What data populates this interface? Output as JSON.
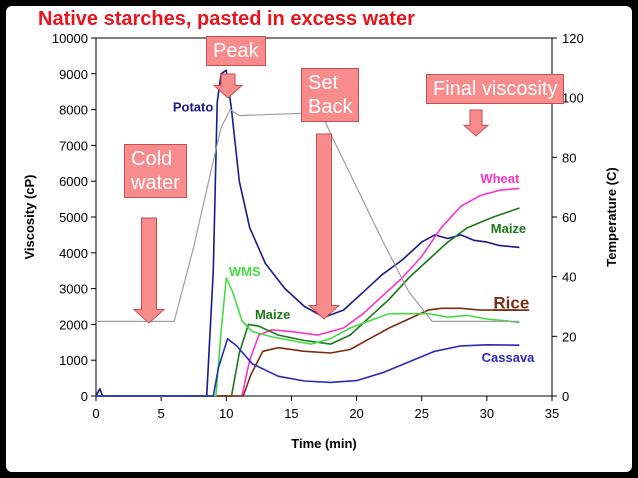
{
  "title": "Native starches, pasted in excess water",
  "callouts": {
    "peak": "Peak",
    "set_back_line1": "Set",
    "set_back_line2": "Back",
    "final_viscosity": "Final viscosity",
    "cold_water_line1": "Cold",
    "cold_water_line2": "water"
  },
  "chart_data": {
    "type": "line",
    "xlabel": "Time (min)",
    "ylabel": "Viscosity (cP)",
    "y2label": "Temperature (C)",
    "xlim": [
      0,
      35
    ],
    "ylim": [
      0,
      10000
    ],
    "y2lim": [
      0,
      120
    ],
    "xticks": [
      "0",
      "5",
      "10",
      "15",
      "20",
      "25",
      "30",
      "35"
    ],
    "yticks": [
      "0",
      "1000",
      "2000",
      "3000",
      "4000",
      "5000",
      "6000",
      "7000",
      "8000",
      "9000",
      "10000"
    ],
    "y2ticks": [
      "0",
      "20",
      "40",
      "60",
      "80",
      "100",
      "120"
    ],
    "grid": false,
    "colors": {
      "potato": "#1a1a8c",
      "wheat": "#ff33cc",
      "maize": "#1a7a1a",
      "rice": "#7a2e10",
      "wms": "#44dd44",
      "cassava": "#2a2ab8",
      "temperature": "#9e9e9e"
    },
    "series": [
      {
        "name": "Potato",
        "axis": "left",
        "color_key": "potato",
        "points": [
          [
            0,
            0
          ],
          [
            0.3,
            200
          ],
          [
            0.5,
            0
          ],
          [
            8.5,
            0
          ],
          [
            9.0,
            3500
          ],
          [
            9.3,
            8200
          ],
          [
            9.6,
            9000
          ],
          [
            10.0,
            9100
          ],
          [
            10.4,
            8000
          ],
          [
            11.0,
            6000
          ],
          [
            11.8,
            4700
          ],
          [
            13,
            3700
          ],
          [
            14.5,
            3000
          ],
          [
            16,
            2500
          ],
          [
            17.5,
            2200
          ],
          [
            19,
            2400
          ],
          [
            20.5,
            2900
          ],
          [
            22,
            3400
          ],
          [
            23.5,
            3800
          ],
          [
            25,
            4300
          ],
          [
            26,
            4500
          ],
          [
            27,
            4400
          ],
          [
            28,
            4500
          ],
          [
            29,
            4350
          ],
          [
            30,
            4300
          ],
          [
            31,
            4200
          ],
          [
            32.5,
            4150
          ]
        ]
      },
      {
        "name": "Wheat",
        "axis": "left",
        "color_key": "wheat",
        "points": [
          [
            0,
            0
          ],
          [
            11.2,
            0
          ],
          [
            11.8,
            1000
          ],
          [
            12.5,
            1700
          ],
          [
            13.5,
            1850
          ],
          [
            15,
            1800
          ],
          [
            17,
            1700
          ],
          [
            19,
            1900
          ],
          [
            20.5,
            2300
          ],
          [
            22,
            2800
          ],
          [
            23.5,
            3300
          ],
          [
            25,
            3900
          ],
          [
            26.5,
            4700
          ],
          [
            28,
            5300
          ],
          [
            29.5,
            5600
          ],
          [
            31,
            5750
          ],
          [
            32.5,
            5800
          ]
        ]
      },
      {
        "name": "Maize",
        "axis": "left",
        "color_key": "maize",
        "points": [
          [
            0,
            0
          ],
          [
            10.4,
            0
          ],
          [
            11.0,
            1200
          ],
          [
            11.7,
            2000
          ],
          [
            12.5,
            1950
          ],
          [
            14,
            1700
          ],
          [
            16,
            1550
          ],
          [
            18,
            1450
          ],
          [
            19.5,
            1700
          ],
          [
            21,
            2200
          ],
          [
            22.5,
            2700
          ],
          [
            24,
            3300
          ],
          [
            25.5,
            3800
          ],
          [
            27,
            4300
          ],
          [
            28.5,
            4700
          ],
          [
            30.5,
            5000
          ],
          [
            32.5,
            5250
          ]
        ]
      },
      {
        "name": "Rice",
        "axis": "left",
        "color_key": "rice",
        "points": [
          [
            0,
            0
          ],
          [
            11.3,
            0
          ],
          [
            11.9,
            600
          ],
          [
            12.8,
            1250
          ],
          [
            14,
            1350
          ],
          [
            16,
            1250
          ],
          [
            18,
            1200
          ],
          [
            19.5,
            1300
          ],
          [
            21,
            1600
          ],
          [
            22.5,
            1900
          ],
          [
            24,
            2150
          ],
          [
            25.5,
            2400
          ],
          [
            26.5,
            2450
          ],
          [
            28,
            2450
          ],
          [
            29.5,
            2400
          ],
          [
            31,
            2400
          ],
          [
            32.5,
            2400
          ]
        ]
      },
      {
        "name": "WMS",
        "axis": "left",
        "color_key": "wms",
        "points": [
          [
            0,
            0
          ],
          [
            9.2,
            0
          ],
          [
            9.6,
            1800
          ],
          [
            10.0,
            3300
          ],
          [
            10.5,
            2900
          ],
          [
            11.2,
            2100
          ],
          [
            12,
            1800
          ],
          [
            13.5,
            1650
          ],
          [
            15,
            1550
          ],
          [
            16.5,
            1450
          ],
          [
            18,
            1600
          ],
          [
            19.5,
            1900
          ],
          [
            21,
            2100
          ],
          [
            22.5,
            2300
          ],
          [
            24,
            2300
          ],
          [
            25.5,
            2300
          ],
          [
            27,
            2200
          ],
          [
            28.5,
            2250
          ],
          [
            30,
            2150
          ],
          [
            31.5,
            2100
          ],
          [
            32.5,
            2050
          ]
        ]
      },
      {
        "name": "Cassava",
        "axis": "left",
        "color_key": "cassava",
        "points": [
          [
            0,
            0
          ],
          [
            9.0,
            0
          ],
          [
            9.4,
            800
          ],
          [
            10.1,
            1600
          ],
          [
            10.8,
            1400
          ],
          [
            12,
            900
          ],
          [
            14,
            550
          ],
          [
            16,
            420
          ],
          [
            18,
            380
          ],
          [
            20,
            430
          ],
          [
            22,
            650
          ],
          [
            24,
            950
          ],
          [
            26,
            1250
          ],
          [
            28,
            1400
          ],
          [
            30,
            1430
          ],
          [
            32.5,
            1420
          ]
        ]
      },
      {
        "name": "",
        "axis": "right",
        "color_key": "temperature",
        "points": [
          [
            0,
            25
          ],
          [
            6,
            25
          ],
          [
            7.5,
            50
          ],
          [
            8.8,
            75
          ],
          [
            9.6,
            90
          ],
          [
            10.3,
            96
          ],
          [
            11,
            94
          ],
          [
            17.3,
            95
          ],
          [
            18,
            88
          ],
          [
            20,
            70
          ],
          [
            22,
            52
          ],
          [
            24,
            35
          ],
          [
            25.8,
            25
          ],
          [
            32.5,
            25
          ]
        ]
      }
    ],
    "series_labels": [
      {
        "text": "Potato",
        "color_key": "potato",
        "x": 5.9,
        "y": 7950
      },
      {
        "text": "Wheat",
        "color_key": "wheat",
        "x": 29.5,
        "y": 5950
      },
      {
        "text": "Maize",
        "color_key": "maize",
        "x": 30.3,
        "y": 4550
      },
      {
        "text": "Rice",
        "color_key": "rice",
        "x": 30.5,
        "y": 2450
      },
      {
        "text": "WMS",
        "color_key": "wms",
        "x": 10.2,
        "y": 3350
      },
      {
        "text": "Maize",
        "color_key": "maize",
        "x": 12.2,
        "y": 2150
      },
      {
        "text": "Cassava",
        "color_key": "cassava",
        "x": 29.6,
        "y": 950
      }
    ]
  }
}
